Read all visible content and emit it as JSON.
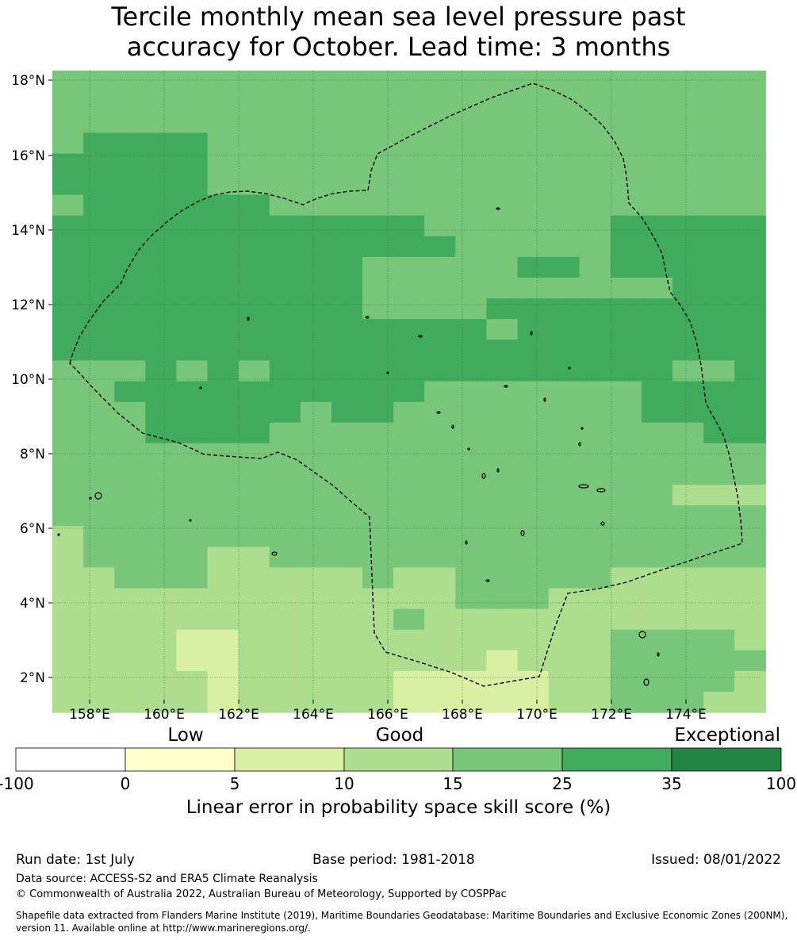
{
  "title_line1": "Tercile monthly mean sea level pressure past",
  "title_line2": "accuracy for October. Lead time: 3 months",
  "lat_labels": [
    "18°N",
    "16°N",
    "14°N",
    "12°N",
    "10°N",
    "8°N",
    "6°N",
    "4°N",
    "2°N"
  ],
  "lon_labels": [
    "158°E",
    "160°E",
    "162°E",
    "164°E",
    "166°E",
    "168°E",
    "170°E",
    "172°E",
    "174°E"
  ],
  "colorbar": {
    "category_labels": [
      "Low",
      "Good",
      "Exceptional"
    ],
    "tick_labels": [
      "-100",
      "0",
      "5",
      "10",
      "15",
      "25",
      "35",
      "100"
    ],
    "colors": [
      "#ffffff",
      "#ffffcc",
      "#d9f0a3",
      "#addd8e",
      "#78c679",
      "#41ab5d",
      "#238443"
    ],
    "title": "Linear error in probability space skill score (%)"
  },
  "footer": {
    "run_date": "Run date: 1st July",
    "base_period": "Base period: 1981-2018",
    "issued": "Issued: 08/01/2022",
    "data_source": "Data source: ACCESS-S2 and ERA5 Climate Reanalysis",
    "copyright": "© Commonwealth of Australia 2022, Australian Bureau of Meteorology, Supported by COSPPac",
    "shapefile_line1": "Shapefile data extracted from Flanders Marine Institute (2019), Maritime Boundaries Geodatabase: Maritime Boundaries and Exclusive Economic Zones (200NM),",
    "shapefile_line2": "version 11. Available online at http://www.marineregions.org/."
  }
}
